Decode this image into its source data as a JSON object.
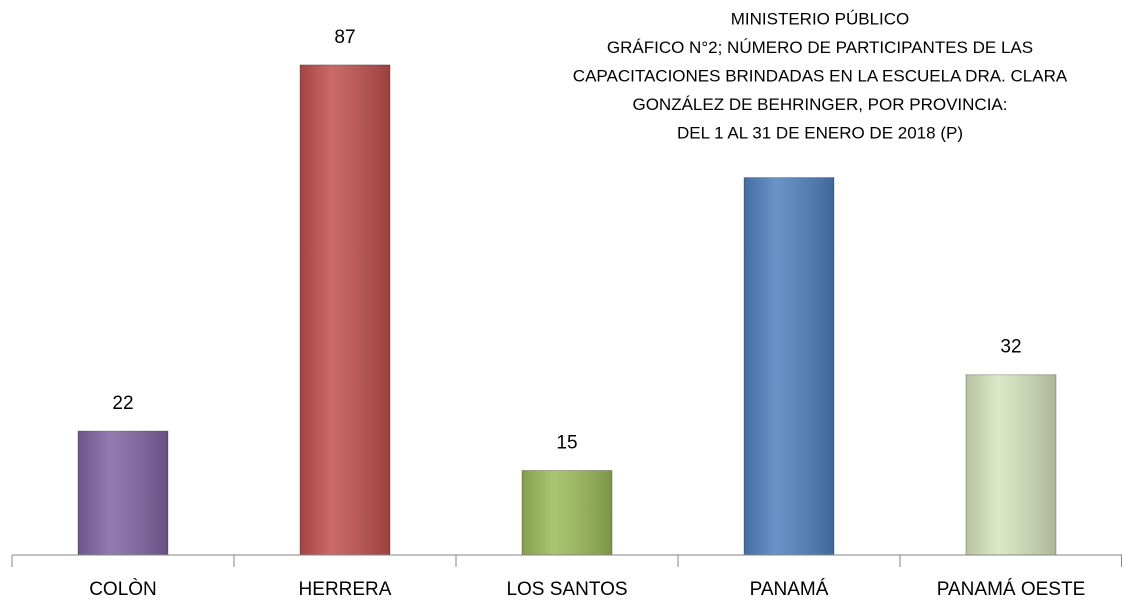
{
  "chart_data": {
    "type": "bar",
    "title": [
      "MINISTERIO PÚBLICO",
      "GRÁFICO N°2;  NÚMERO DE PARTICIPANTES DE LAS",
      "CAPACITACIONES BRINDADAS EN LA ESCUELA  DRA. CLARA",
      "GONZÁLEZ DE BEHRINGER, POR PROVINCIA:",
      "DEL 1 AL 31 DE ENERO DE 2018 (P)"
    ],
    "categories": [
      "COLÒN",
      "HERRERA",
      "LOS SANTOS",
      "PANAMÁ",
      "PANAMÁ OESTE"
    ],
    "values": [
      22,
      87,
      15,
      67,
      32
    ],
    "value_labels": [
      "22",
      "87",
      "15",
      null,
      "32"
    ],
    "colors": [
      "#8064a2",
      "#c0504d",
      "#9bbb59",
      "#4f81bd",
      "#d7e4bd"
    ],
    "ylim": [
      0,
      90
    ]
  }
}
